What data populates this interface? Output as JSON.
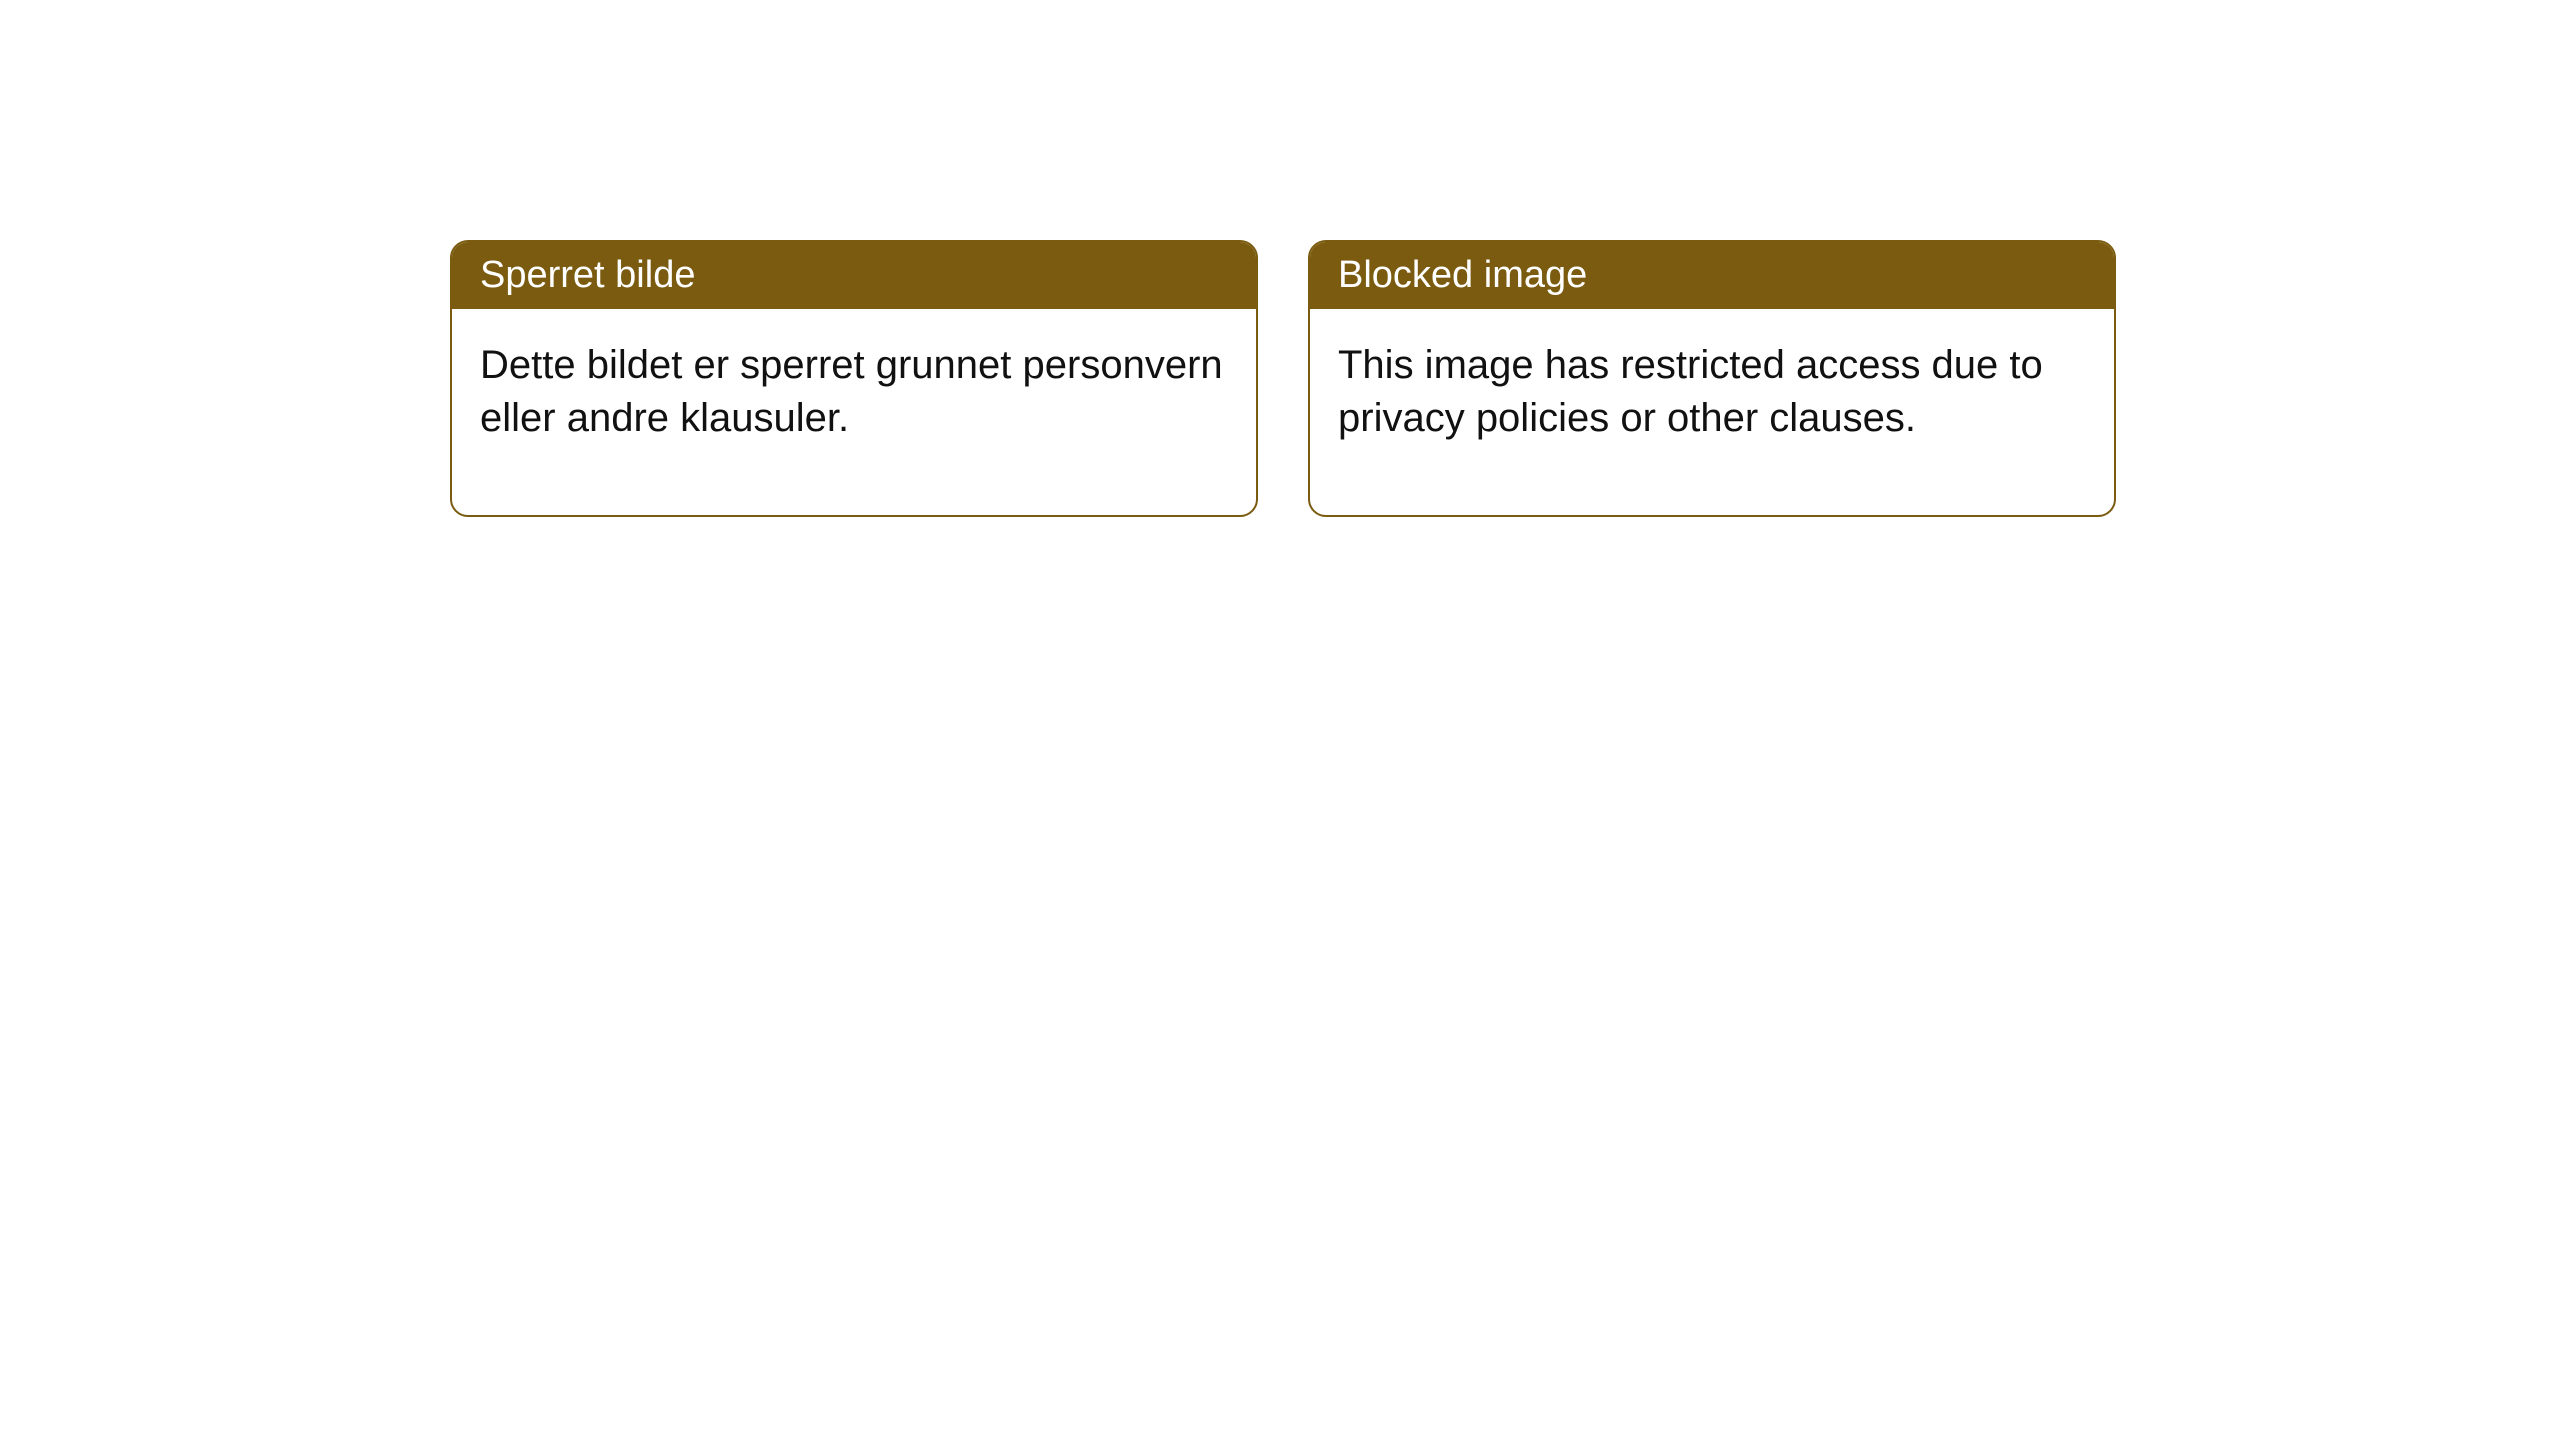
{
  "notices": [
    {
      "title": "Sperret bilde",
      "body": "Dette bildet er sperret grunnet personvern eller andre klausuler."
    },
    {
      "title": "Blocked image",
      "body": "This image has restricted access due to privacy policies or other clauses."
    }
  ],
  "style": {
    "header_bg": "#7a5b10",
    "header_text_color": "#ffffff",
    "border_color": "#7a5b10",
    "body_text_color": "#111111",
    "background_color": "#ffffff",
    "title_fontsize": 38,
    "body_fontsize": 40,
    "border_radius": 18
  }
}
